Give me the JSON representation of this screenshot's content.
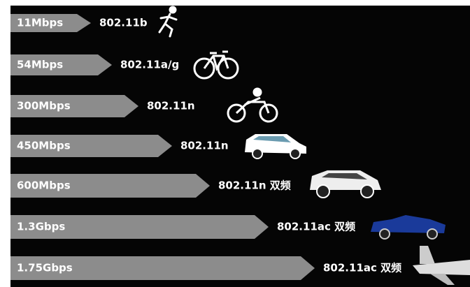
{
  "rows": [
    {
      "speed": "11Mbps",
      "standard": "802.11b"
    },
    {
      "speed": "54Mbps",
      "standard": "802.11a/g"
    },
    {
      "speed": "300Mbps",
      "standard": "802.11n"
    },
    {
      "speed": "450Mbps",
      "standard": "802.11n"
    },
    {
      "speed": "600Mbps",
      "standard": "802.11n 双频"
    },
    {
      "speed": "1.3Gbps",
      "standard": "802.11ac 双频"
    },
    {
      "speed": "1.75Gbps",
      "standard": "802.11ac 双频"
    }
  ]
}
